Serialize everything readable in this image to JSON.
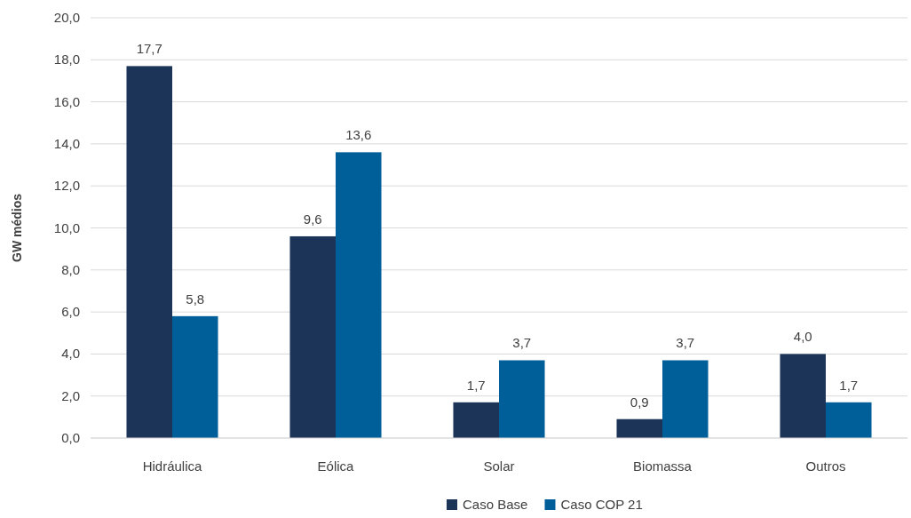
{
  "chart_data": {
    "type": "bar",
    "ylabel": "GW médios",
    "categories": [
      "Hidráulica",
      "Eólica",
      "Solar",
      "Biomassa",
      "Outros"
    ],
    "series": [
      {
        "name": "Caso Base",
        "color": "#1d3459",
        "values": [
          17.7,
          9.6,
          1.7,
          0.9,
          4.0
        ],
        "value_labels": [
          "17,7",
          "9,6",
          "1,7",
          "0,9",
          "4,0"
        ]
      },
      {
        "name": "Caso COP 21",
        "color": "#005f99",
        "values": [
          5.8,
          13.6,
          3.7,
          3.7,
          1.7
        ],
        "value_labels": [
          "5,8",
          "13,6",
          "3,7",
          "3,7",
          "1,7"
        ]
      }
    ],
    "ylim": [
      0,
      20
    ],
    "yticks": [
      {
        "value": 0,
        "label": "0,0"
      },
      {
        "value": 2,
        "label": "2,0"
      },
      {
        "value": 4,
        "label": "4,0"
      },
      {
        "value": 6,
        "label": "6,0"
      },
      {
        "value": 8,
        "label": "8,0"
      },
      {
        "value": 10,
        "label": "10,0"
      },
      {
        "value": 12,
        "label": "12,0"
      },
      {
        "value": 14,
        "label": "14,0"
      },
      {
        "value": 16,
        "label": "16,0"
      },
      {
        "value": 18,
        "label": "18,0"
      },
      {
        "value": 20,
        "label": "20,0"
      }
    ],
    "grid": "y",
    "legend": "bottom"
  }
}
